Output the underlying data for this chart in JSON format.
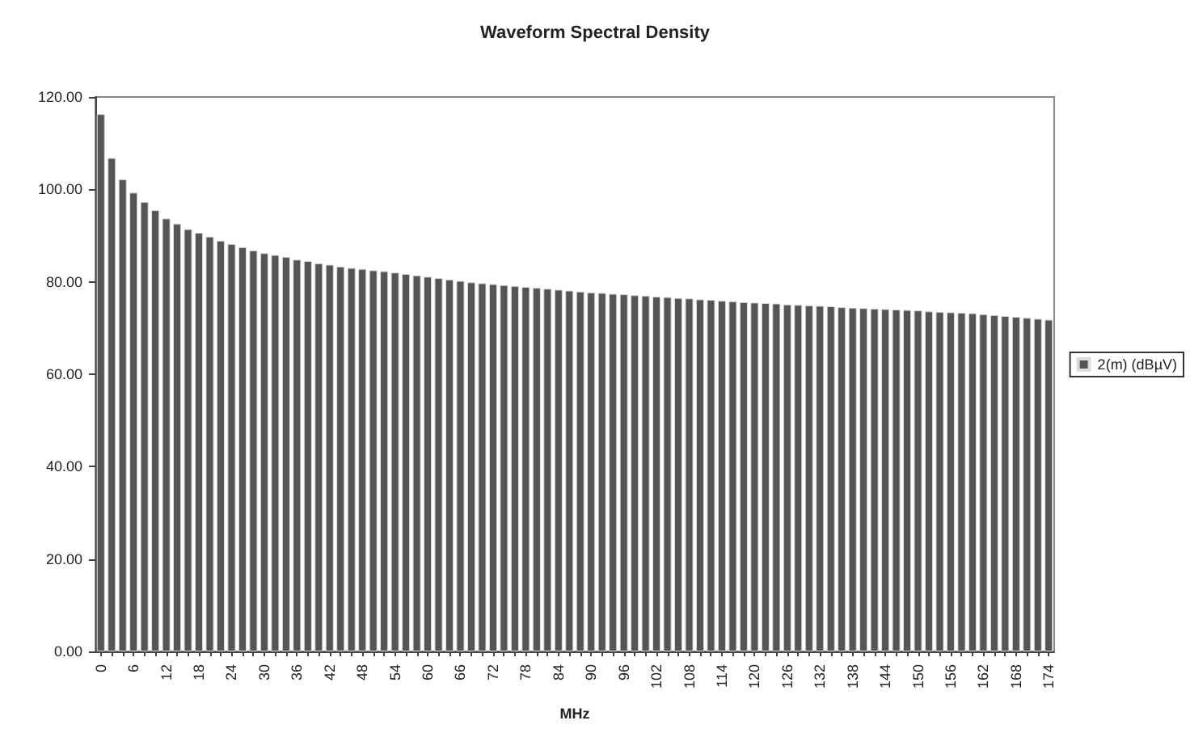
{
  "chart_data": {
    "type": "bar",
    "title": "Waveform Spectral Density",
    "xlabel": "MHz",
    "categories": [
      "0",
      null,
      null,
      "6",
      null,
      null,
      "12",
      null,
      null,
      "18",
      null,
      null,
      "24",
      null,
      null,
      "30",
      null,
      null,
      "36",
      null,
      null,
      "42",
      null,
      null,
      "48",
      null,
      null,
      "54",
      null,
      null,
      "60",
      null,
      null,
      "66",
      null,
      null,
      "72",
      null,
      null,
      "78",
      null,
      null,
      "84",
      null,
      null,
      "90",
      null,
      null,
      "96",
      null,
      null,
      "102",
      null,
      null,
      "108",
      null,
      null,
      "114",
      null,
      null,
      "120",
      null,
      null,
      "126",
      null,
      null,
      "132",
      null,
      null,
      "138",
      null,
      null,
      "144",
      null,
      null,
      "150",
      null,
      null,
      "156",
      null,
      null,
      "162",
      null,
      null,
      "168",
      null,
      null,
      "174"
    ],
    "series": [
      {
        "name": "2(m) (dBµV)",
        "color": "#555555",
        "values": [
          116.3,
          106.8,
          102.2,
          99.3,
          97.3,
          95.5,
          93.7,
          92.6,
          91.4,
          90.6,
          89.8,
          88.9,
          88.2,
          87.5,
          86.8,
          86.2,
          85.8,
          85.4,
          84.8,
          84.5,
          84.0,
          83.7,
          83.3,
          83.0,
          82.8,
          82.5,
          82.3,
          82.0,
          81.7,
          81.4,
          81.1,
          80.8,
          80.5,
          80.2,
          79.9,
          79.7,
          79.5,
          79.3,
          79.1,
          78.9,
          78.7,
          78.5,
          78.3,
          78.1,
          77.9,
          77.7,
          77.6,
          77.4,
          77.3,
          77.1,
          77.0,
          76.8,
          76.7,
          76.5,
          76.4,
          76.2,
          76.1,
          75.9,
          75.8,
          75.6,
          75.5,
          75.4,
          75.3,
          75.1,
          75.0,
          74.9,
          74.8,
          74.7,
          74.5,
          74.4,
          74.3,
          74.2,
          74.1,
          74.0,
          73.9,
          73.8,
          73.6,
          73.5,
          73.4,
          73.3,
          73.2,
          73.0,
          72.8,
          72.6,
          72.4,
          72.2,
          72.0,
          71.8
        ]
      }
    ],
    "ylim": [
      0,
      120
    ],
    "yticks": [
      {
        "value": 0,
        "label": "0.00"
      },
      {
        "value": 20,
        "label": "20.00"
      },
      {
        "value": 40,
        "label": "40.00"
      },
      {
        "value": 60,
        "label": "60.00"
      },
      {
        "value": 80,
        "label": "80.00"
      },
      {
        "value": 100,
        "label": "100.00"
      },
      {
        "value": 120,
        "label": "120.00"
      }
    ],
    "grid": false,
    "legend": "right"
  }
}
